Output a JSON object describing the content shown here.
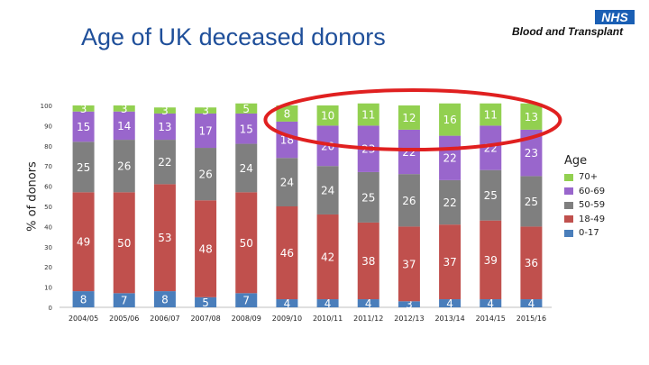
{
  "header": {
    "title": "Age of UK deceased donors",
    "logo": {
      "brand": "NHS",
      "name": "Blood and Transplant"
    }
  },
  "chart_data": {
    "type": "bar",
    "stacked": true,
    "ylabel": "% of donors",
    "ylim": [
      0,
      100
    ],
    "yticks": [
      0,
      10,
      20,
      30,
      40,
      50,
      60,
      70,
      80,
      90,
      100
    ],
    "categories": [
      "2004/05",
      "2005/06",
      "2006/07",
      "2007/08",
      "2008/09",
      "2009/10",
      "2010/11",
      "2011/12",
      "2012/13",
      "2013/14",
      "2014/15",
      "2015/16"
    ],
    "legend_title": "Age",
    "legend_position": "right",
    "series": [
      {
        "name": "0-17",
        "color": "#4a7ebb",
        "values": [
          8,
          7,
          8,
          5,
          7,
          4,
          4,
          4,
          3,
          4,
          4,
          4
        ]
      },
      {
        "name": "18-49",
        "color": "#c0504d",
        "values": [
          49,
          50,
          53,
          48,
          50,
          46,
          42,
          38,
          37,
          37,
          39,
          36
        ]
      },
      {
        "name": "50-59",
        "color": "#7f7f7f",
        "values": [
          25,
          26,
          22,
          26,
          24,
          24,
          24,
          25,
          26,
          22,
          25,
          25
        ]
      },
      {
        "name": "60-69",
        "color": "#9966cc",
        "values": [
          15,
          14,
          13,
          17,
          15,
          18,
          20,
          23,
          22,
          22,
          22,
          23
        ]
      },
      {
        "name": "70+",
        "color": "#92d050",
        "values": [
          3,
          3,
          3,
          3,
          5,
          8,
          10,
          11,
          12,
          16,
          11,
          13
        ]
      }
    ],
    "annotation": {
      "shape": "ellipse",
      "color": "#e02020",
      "highlights": [
        "2009/10",
        "2010/11",
        "2011/12",
        "2012/13",
        "2013/14",
        "2014/15",
        "2015/16"
      ]
    }
  }
}
